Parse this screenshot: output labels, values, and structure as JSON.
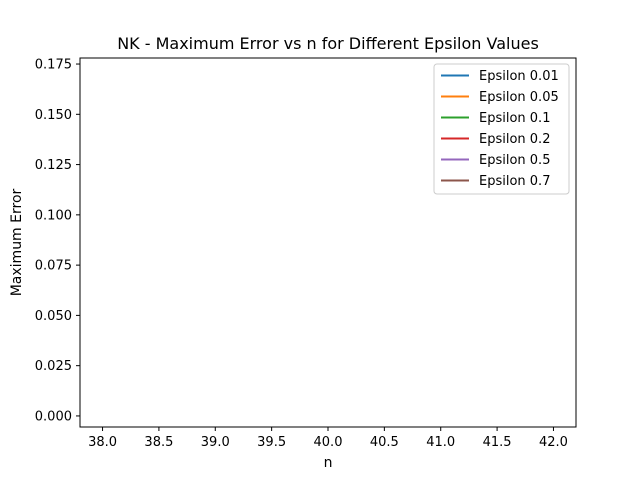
{
  "chart_data": {
    "type": "line",
    "title": "NK - Maximum Error vs n for Different Epsilon Values",
    "xlabel": "n",
    "ylabel": "Maximum Error",
    "xlim": [
      37.8,
      42.2
    ],
    "ylim": [
      -0.0055,
      0.178
    ],
    "xticks": [
      "38.0",
      "38.5",
      "39.0",
      "39.5",
      "40.0",
      "40.5",
      "41.0",
      "41.5",
      "42.0"
    ],
    "xtick_values": [
      38.0,
      38.5,
      39.0,
      39.5,
      40.0,
      40.5,
      41.0,
      41.5,
      42.0
    ],
    "yticks": [
      "0.000",
      "0.025",
      "0.050",
      "0.075",
      "0.100",
      "0.125",
      "0.150",
      "0.175"
    ],
    "ytick_values": [
      0.0,
      0.025,
      0.05,
      0.075,
      0.1,
      0.125,
      0.15,
      0.175
    ],
    "grid": false,
    "legend_position": "top-right",
    "series": [
      {
        "name": "Epsilon 0.01",
        "color": "#1f77b4",
        "x": [],
        "y": []
      },
      {
        "name": "Epsilon 0.05",
        "color": "#ff7f0e",
        "x": [],
        "y": []
      },
      {
        "name": "Epsilon 0.1",
        "color": "#2ca02c",
        "x": [],
        "y": []
      },
      {
        "name": "Epsilon 0.2",
        "color": "#d62728",
        "x": [],
        "y": []
      },
      {
        "name": "Epsilon 0.5",
        "color": "#9467bd",
        "x": [],
        "y": []
      },
      {
        "name": "Epsilon 0.7",
        "color": "#8c564b",
        "x": [],
        "y": []
      }
    ]
  }
}
